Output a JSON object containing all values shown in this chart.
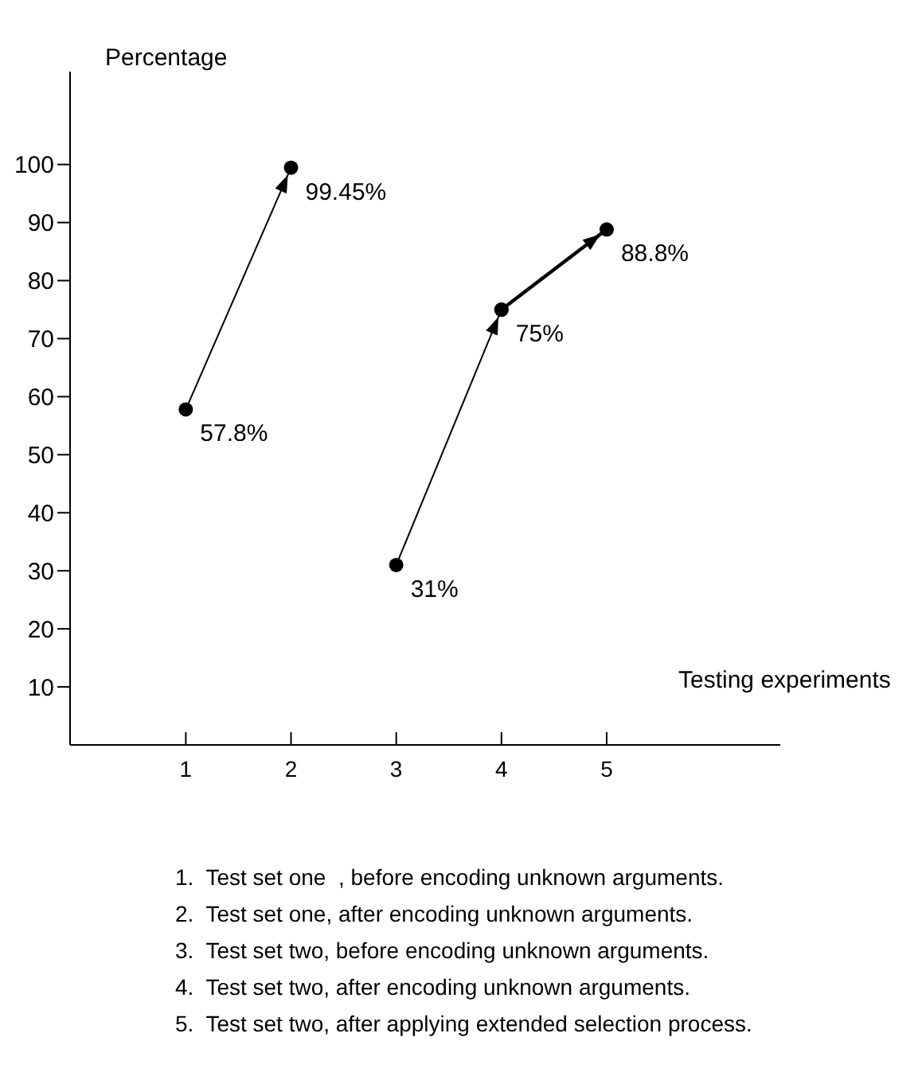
{
  "chart_data": {
    "type": "line",
    "xlabel": "Testing experiments",
    "ylabel": "Percentage",
    "xlim": [
      -0.1,
      6.65
    ],
    "xticks": [
      1,
      2,
      3,
      4,
      5
    ],
    "ylim": [
      0,
      116
    ],
    "yticks": [
      10,
      20,
      30,
      40,
      50,
      60,
      70,
      80,
      90,
      100
    ],
    "marker": "circle",
    "line_style": "solid",
    "series": [
      {
        "color": "#000000",
        "x": [
          1,
          2
        ],
        "values": [
          57.8,
          99.45
        ],
        "value_labels": [
          "57.8%",
          "99.45%"
        ]
      },
      {
        "color": "#000000",
        "x": [
          3,
          4
        ],
        "values": [
          31,
          75
        ],
        "value_labels": [
          "31%",
          "75%"
        ]
      },
      {
        "color": "#000000",
        "x": [
          4,
          5
        ],
        "values": [
          75,
          88.8
        ],
        "value_labels": [
          null,
          "88.8%"
        ]
      }
    ],
    "annotations": [
      "1.  Test set one  , before encoding unknown arguments.",
      "2.  Test set one, after encoding unknown arguments.",
      "3.  Test set two, before encoding unknown arguments.",
      "4.  Test set two, after encoding unknown arguments.",
      "5.  Test set two, after applying extended selection process."
    ]
  }
}
